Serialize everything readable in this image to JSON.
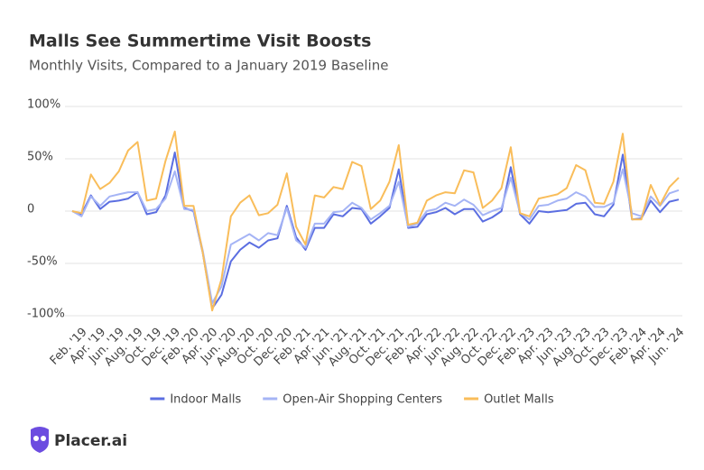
{
  "chart_data": {
    "type": "line",
    "title": "Malls See Summertime Visit Boosts",
    "subtitle": "Monthly Visits, Compared to a January 2019 Baseline",
    "categories": [
      null,
      "Feb. '19",
      null,
      "Apr. '19",
      null,
      "Jun. '19",
      null,
      "Aug. '19",
      null,
      "Oct. '19",
      null,
      "Dec. '19",
      null,
      "Feb. '20",
      null,
      "Apr. '20",
      null,
      "Jun. '20",
      null,
      "Aug. '20",
      null,
      "Oct. '20",
      null,
      "Dec. '20",
      null,
      "Feb. '21",
      null,
      "Apr. '21",
      null,
      "Jun. '21",
      null,
      "Aug. '21",
      null,
      "Oct. '21",
      null,
      "Dec. '21",
      null,
      "Feb. '22",
      null,
      "Apr. '22",
      null,
      "Jun. '22",
      null,
      "Aug. '22",
      null,
      "Oct. '22",
      null,
      "Dec. '22",
      null,
      "Feb. '23",
      null,
      "Apr. '23",
      null,
      "Jun. '23",
      null,
      "Aug. '23",
      null,
      "Oct. '23",
      null,
      "Dec. '23",
      null,
      "Feb. '24",
      null,
      "Apr. '24",
      null,
      "Jun. '24"
    ],
    "series": [
      {
        "name": "Indoor Malls",
        "color": "#5b6ee1",
        "values": [
          0,
          -3,
          15,
          2,
          9,
          10,
          12,
          18,
          -3,
          -1,
          15,
          56,
          3,
          0,
          -40,
          -93,
          -80,
          -48,
          -37,
          -30,
          -35,
          -28,
          -26,
          5,
          -25,
          -37,
          -16,
          -16,
          -3,
          -5,
          3,
          2,
          -12,
          -5,
          3,
          40,
          -16,
          -15,
          -3,
          -1,
          3,
          -3,
          2,
          2,
          -10,
          -6,
          0,
          42,
          -3,
          -12,
          0,
          -1,
          0,
          1,
          7,
          8,
          -3,
          -5,
          6,
          54,
          -8,
          -7,
          10,
          -1,
          9,
          11
        ]
      },
      {
        "name": "Open-Air Shopping Centers",
        "color": "#a5b4f5",
        "values": [
          0,
          -5,
          14,
          5,
          14,
          16,
          18,
          18,
          0,
          2,
          12,
          38,
          2,
          1,
          -38,
          -88,
          -72,
          -32,
          -27,
          -22,
          -28,
          -21,
          -23,
          3,
          -28,
          -35,
          -12,
          -12,
          -1,
          0,
          8,
          3,
          -8,
          -2,
          5,
          28,
          -15,
          -12,
          0,
          2,
          8,
          5,
          11,
          6,
          -4,
          0,
          3,
          32,
          -2,
          -8,
          5,
          6,
          10,
          12,
          18,
          14,
          4,
          4,
          8,
          40,
          -2,
          -5,
          14,
          5,
          17,
          20
        ]
      },
      {
        "name": "Outlet Malls",
        "color": "#f9bd5a",
        "values": [
          0,
          -2,
          35,
          21,
          27,
          38,
          58,
          66,
          10,
          12,
          48,
          76,
          5,
          5,
          -40,
          -95,
          -65,
          -5,
          8,
          15,
          -4,
          -2,
          6,
          36,
          -15,
          -32,
          15,
          13,
          23,
          21,
          47,
          43,
          2,
          10,
          28,
          63,
          -13,
          -11,
          10,
          15,
          18,
          17,
          39,
          37,
          3,
          10,
          22,
          61,
          -2,
          -5,
          12,
          14,
          16,
          22,
          44,
          39,
          8,
          7,
          28,
          74,
          -8,
          -8,
          25,
          6,
          23,
          32
        ]
      }
    ],
    "ylim": [
      -100,
      100
    ],
    "yticks": [
      {
        "value": -100,
        "label": "-100%"
      },
      {
        "value": -50,
        "label": "-50%"
      },
      0,
      {
        "value": 50,
        "label": "50%"
      },
      {
        "value": 100,
        "label": "100%"
      }
    ],
    "grid": true,
    "legend": "bottom"
  },
  "footer": {
    "brand": "Placer.ai"
  }
}
